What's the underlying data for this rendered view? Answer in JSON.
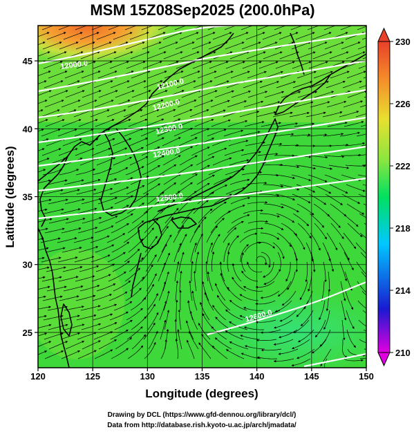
{
  "title": "MSM 15Z08Sep2025 (200.0hPa)",
  "xaxis": {
    "label": "Longitude (degrees)",
    "range": [
      120,
      150
    ],
    "ticks": [
      "120",
      "125",
      "130",
      "135",
      "140",
      "145",
      "150"
    ]
  },
  "yaxis": {
    "label": "Latitude  (degrees)",
    "range": [
      22.4,
      47.6
    ],
    "ticks": [
      "25",
      "30",
      "35",
      "40",
      "45"
    ]
  },
  "colorbar": {
    "ticks": [
      "210",
      "214",
      "218",
      "222",
      "226",
      "230"
    ],
    "range": [
      210,
      230
    ],
    "colors": [
      "#e000e0",
      "#1a1ad0",
      "#00c8ff",
      "#00e060",
      "#8ce640",
      "#e8e030",
      "#f58c2a",
      "#e8402a"
    ]
  },
  "contours": {
    "labels": [
      "12000.0",
      "12100.0",
      "12200.0",
      "12300.0",
      "12400.0",
      "12500.0",
      "12600.0"
    ]
  },
  "credits": {
    "line1": "Drawing by DCL (https://www.gfd-dennou.org/library/dcl/)",
    "line2": "Data from http://database.rish.kyoto-u.ac.jp/arch/jmadata/"
  },
  "style": {
    "ocean_green": "#3cdc3c",
    "warm_north": "#f08c30",
    "contour_color": "#ffffff",
    "coast_color": "#000000"
  },
  "map_data": {
    "type": "streamline-map",
    "variable": "temperature / geopotential height at 200 hPa",
    "grid": "on",
    "colorbar_placement": "right"
  }
}
